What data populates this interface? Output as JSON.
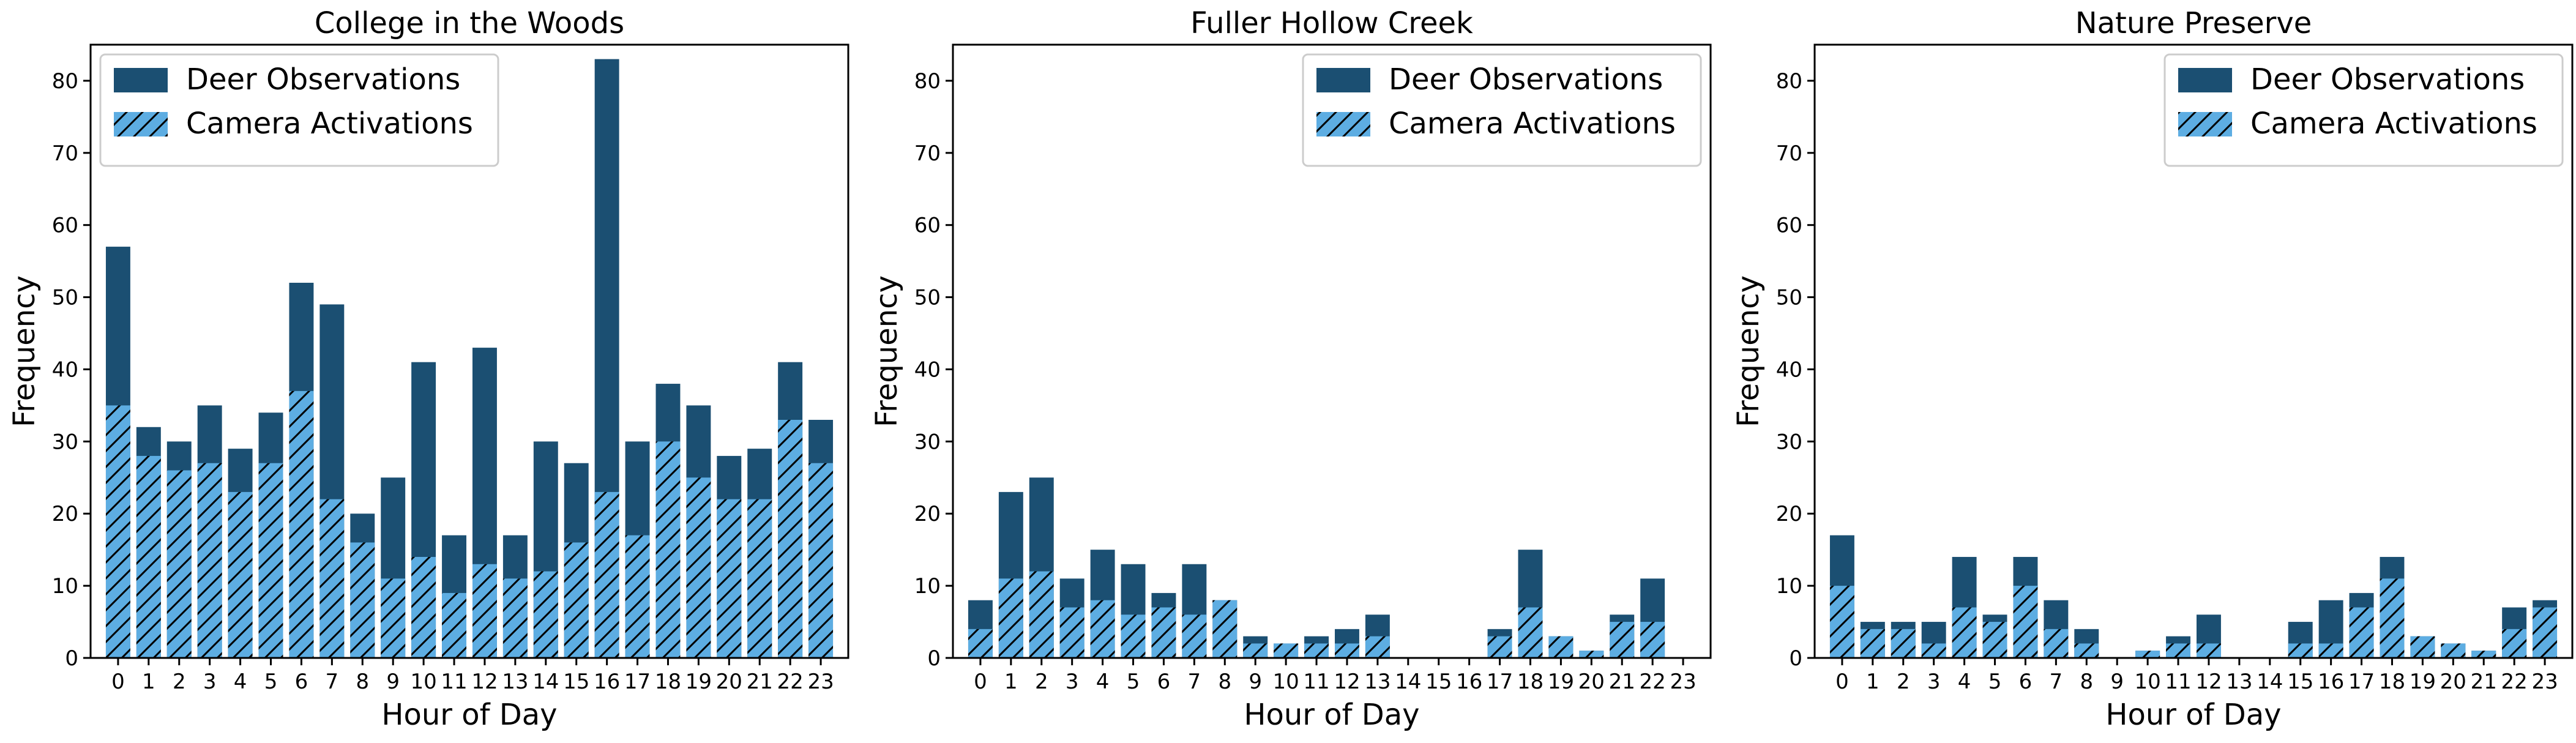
{
  "colors": {
    "deer": "#1b4f72",
    "camera": "#5dade2",
    "hatch": "#000000",
    "axes": "#000000",
    "legend_border": "#cccccc"
  },
  "chart_data": [
    {
      "type": "bar",
      "title": "College in the Woods",
      "xlabel": "Hour of Day",
      "ylabel": "Frequency",
      "ylim": [
        0,
        85
      ],
      "yticks": [
        0,
        10,
        20,
        30,
        40,
        50,
        60,
        70,
        80
      ],
      "legend_position": "top-left",
      "categories": [
        "0",
        "1",
        "2",
        "3",
        "4",
        "5",
        "6",
        "7",
        "8",
        "9",
        "10",
        "11",
        "12",
        "13",
        "14",
        "15",
        "16",
        "17",
        "18",
        "19",
        "20",
        "21",
        "22",
        "23"
      ],
      "series": [
        {
          "name": "Deer Observations",
          "style": "solid",
          "values": [
            57,
            32,
            30,
            35,
            29,
            34,
            52,
            49,
            20,
            25,
            41,
            17,
            43,
            17,
            30,
            27,
            83,
            30,
            38,
            35,
            28,
            29,
            41,
            33
          ]
        },
        {
          "name": "Camera Activations",
          "style": "hatched",
          "values": [
            35,
            28,
            26,
            27,
            23,
            27,
            37,
            22,
            16,
            11,
            14,
            9,
            13,
            11,
            12,
            16,
            23,
            17,
            30,
            25,
            22,
            22,
            33,
            27
          ]
        }
      ]
    },
    {
      "type": "bar",
      "title": "Fuller Hollow Creek",
      "xlabel": "Hour of Day",
      "ylabel": "Frequency",
      "ylim": [
        0,
        85
      ],
      "yticks": [
        0,
        10,
        20,
        30,
        40,
        50,
        60,
        70,
        80
      ],
      "legend_position": "top-right",
      "categories": [
        "0",
        "1",
        "2",
        "3",
        "4",
        "5",
        "6",
        "7",
        "8",
        "9",
        "10",
        "11",
        "12",
        "13",
        "14",
        "15",
        "16",
        "17",
        "18",
        "19",
        "20",
        "21",
        "22",
        "23"
      ],
      "series": [
        {
          "name": "Deer Observations",
          "style": "solid",
          "values": [
            8,
            23,
            25,
            11,
            15,
            13,
            9,
            13,
            8,
            3,
            2,
            3,
            4,
            6,
            0,
            0,
            0,
            4,
            15,
            3,
            1,
            6,
            11,
            0
          ]
        },
        {
          "name": "Camera Activations",
          "style": "hatched",
          "values": [
            4,
            11,
            12,
            7,
            8,
            6,
            7,
            6,
            8,
            2,
            2,
            2,
            2,
            3,
            0,
            0,
            0,
            3,
            7,
            3,
            1,
            5,
            5,
            0
          ]
        }
      ]
    },
    {
      "type": "bar",
      "title": "Nature Preserve",
      "xlabel": "Hour of Day",
      "ylabel": "Frequency",
      "ylim": [
        0,
        85
      ],
      "yticks": [
        0,
        10,
        20,
        30,
        40,
        50,
        60,
        70,
        80
      ],
      "legend_position": "top-right",
      "categories": [
        "0",
        "1",
        "2",
        "3",
        "4",
        "5",
        "6",
        "7",
        "8",
        "9",
        "10",
        "11",
        "12",
        "13",
        "14",
        "15",
        "16",
        "17",
        "18",
        "19",
        "20",
        "21",
        "22",
        "23"
      ],
      "series": [
        {
          "name": "Deer Observations",
          "style": "solid",
          "values": [
            17,
            5,
            5,
            5,
            14,
            6,
            14,
            8,
            4,
            0,
            1,
            3,
            6,
            0,
            0,
            5,
            8,
            9,
            14,
            3,
            2,
            1,
            7,
            8
          ]
        },
        {
          "name": "Camera Activations",
          "style": "hatched",
          "values": [
            10,
            4,
            4,
            2,
            7,
            5,
            10,
            4,
            2,
            0,
            1,
            2,
            2,
            0,
            0,
            2,
            2,
            7,
            11,
            3,
            2,
            1,
            4,
            7
          ]
        }
      ]
    }
  ]
}
